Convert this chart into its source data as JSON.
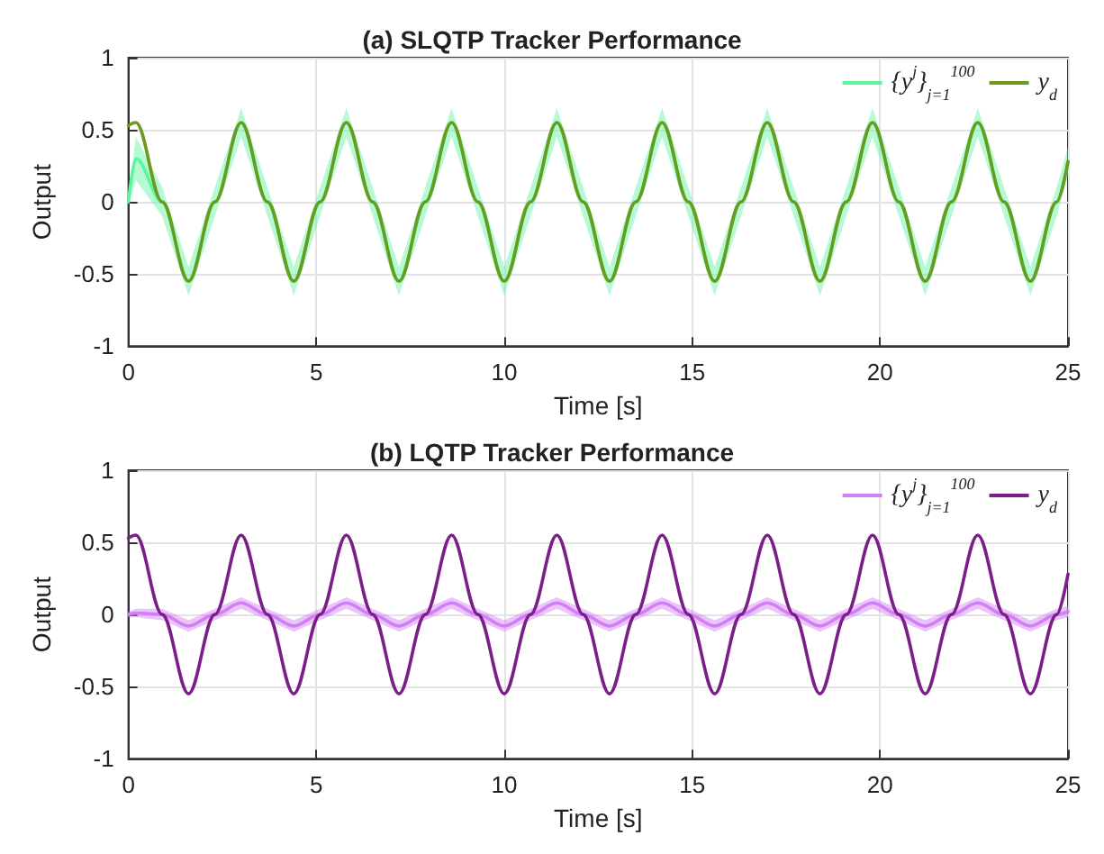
{
  "chart_data": [
    {
      "type": "line",
      "title": "(a) SLQTP Tracker Performance",
      "xlabel": "Time [s]",
      "ylabel": "Output",
      "xlim": [
        0,
        25
      ],
      "xticks": [
        0,
        5,
        10,
        15,
        20,
        25
      ],
      "ylim": [
        -1,
        1
      ],
      "yticks": [
        -1,
        -0.5,
        0,
        0.5,
        1
      ],
      "grid": true,
      "legend": "top right",
      "line_style": "solid",
      "marker": "none",
      "x": [
        0,
        0.2,
        0.9,
        1.6,
        2.3,
        3.0,
        3.7,
        4.4,
        5.1,
        5.8,
        6.5,
        7.2,
        7.9,
        8.6,
        9.3,
        10.0,
        10.7,
        11.4,
        12.1,
        12.8,
        13.5,
        14.2,
        14.9,
        15.6,
        16.3,
        17.0,
        17.7,
        18.4,
        19.1,
        19.8,
        20.5,
        21.2,
        21.9,
        22.6,
        23.3,
        24.0,
        24.7,
        25
      ],
      "series": [
        {
          "name": "{y$^{j}$}$_{j=1}$$^{100}$",
          "color": "#5ef59e",
          "values": [
            0,
            0.3,
            0,
            -0.55,
            0,
            0.55,
            0,
            -0.55,
            0,
            0.55,
            0,
            -0.55,
            0,
            0.55,
            0,
            -0.55,
            0,
            0.55,
            0,
            -0.55,
            0,
            0.55,
            0,
            -0.55,
            0,
            0.55,
            0,
            -0.55,
            0,
            0.55,
            0,
            -0.55,
            0,
            0.55,
            0,
            -0.55,
            0,
            0.28
          ],
          "lower": [
            -0.02,
            0.15,
            -0.1,
            -0.65,
            -0.1,
            0.45,
            -0.1,
            -0.65,
            -0.1,
            0.45,
            -0.1,
            -0.65,
            -0.1,
            0.45,
            -0.1,
            -0.65,
            -0.1,
            0.45,
            -0.1,
            -0.65,
            -0.1,
            0.45,
            -0.1,
            -0.65,
            -0.1,
            0.45,
            -0.1,
            -0.65,
            -0.1,
            0.45,
            -0.1,
            -0.65,
            -0.1,
            0.45,
            -0.1,
            -0.65,
            -0.1,
            0.18
          ],
          "upper": [
            0.05,
            0.45,
            0.1,
            -0.45,
            0.1,
            0.65,
            0.1,
            -0.45,
            0.1,
            0.65,
            0.1,
            -0.45,
            0.1,
            0.65,
            0.1,
            -0.45,
            0.1,
            0.65,
            0.1,
            -0.45,
            0.1,
            0.65,
            0.1,
            -0.45,
            0.1,
            0.65,
            0.1,
            -0.45,
            0.1,
            0.65,
            0.1,
            -0.45,
            0.1,
            0.65,
            0.1,
            -0.45,
            0.1,
            0.38
          ]
        },
        {
          "name": "y$_{d}$",
          "color": "#6a9a1f",
          "values": [
            0.53,
            0.55,
            0,
            -0.55,
            0,
            0.55,
            0,
            -0.55,
            0,
            0.55,
            0,
            -0.55,
            0,
            0.55,
            0,
            -0.55,
            0,
            0.55,
            0,
            -0.55,
            0,
            0.55,
            0,
            -0.55,
            0,
            0.55,
            0,
            -0.55,
            0,
            0.55,
            0,
            -0.55,
            0,
            0.55,
            0,
            -0.55,
            0,
            0.28
          ]
        }
      ]
    },
    {
      "type": "line",
      "title": "(b) LQTP Tracker Performance",
      "xlabel": "Time [s]",
      "ylabel": "Output",
      "xlim": [
        0,
        25
      ],
      "xticks": [
        0,
        5,
        10,
        15,
        20,
        25
      ],
      "ylim": [
        -1,
        1
      ],
      "yticks": [
        -1,
        -0.5,
        0,
        0.5,
        1
      ],
      "grid": true,
      "legend": "top right",
      "line_style": "solid",
      "marker": "none",
      "x": [
        0,
        0.2,
        0.9,
        1.6,
        2.3,
        3.0,
        3.7,
        4.4,
        5.1,
        5.8,
        6.5,
        7.2,
        7.9,
        8.6,
        9.3,
        10.0,
        10.7,
        11.4,
        12.1,
        12.8,
        13.5,
        14.2,
        14.9,
        15.6,
        16.3,
        17.0,
        17.7,
        18.4,
        19.1,
        19.8,
        20.5,
        21.2,
        21.9,
        22.6,
        23.3,
        24.0,
        24.7,
        25
      ],
      "series": [
        {
          "name": "{y$^{j}$}$_{j=1}$$^{100}$",
          "color": "#d27ef5",
          "values": [
            0,
            0.01,
            0,
            -0.08,
            0,
            0.08,
            0,
            -0.08,
            0,
            0.08,
            0,
            -0.08,
            0,
            0.08,
            0,
            -0.08,
            0,
            0.08,
            0,
            -0.08,
            0,
            0.08,
            0,
            -0.08,
            0,
            0.08,
            0,
            -0.08,
            0,
            0.08,
            0,
            -0.08,
            0,
            0.08,
            0,
            -0.08,
            0,
            0.02
          ],
          "lower": [
            -0.02,
            -0.02,
            -0.04,
            -0.12,
            -0.04,
            0.04,
            -0.04,
            -0.12,
            -0.04,
            0.04,
            -0.04,
            -0.12,
            -0.04,
            0.04,
            -0.04,
            -0.12,
            -0.04,
            0.04,
            -0.04,
            -0.12,
            -0.04,
            0.04,
            -0.04,
            -0.12,
            -0.04,
            0.04,
            -0.04,
            -0.12,
            -0.04,
            0.04,
            -0.04,
            -0.12,
            -0.04,
            0.04,
            -0.04,
            -0.12,
            -0.04,
            -0.02
          ],
          "upper": [
            0.02,
            0.04,
            0.04,
            -0.04,
            0.04,
            0.12,
            0.04,
            -0.04,
            0.04,
            0.12,
            0.04,
            -0.04,
            0.04,
            0.12,
            0.04,
            -0.04,
            0.04,
            0.12,
            0.04,
            -0.04,
            0.04,
            0.12,
            0.04,
            -0.04,
            0.04,
            0.12,
            0.04,
            -0.04,
            0.04,
            0.12,
            0.04,
            -0.04,
            0.04,
            0.12,
            0.04,
            -0.04,
            0.04,
            0.06
          ]
        },
        {
          "name": "y$_{d}$",
          "color": "#7a1f87",
          "values": [
            0.53,
            0.55,
            0,
            -0.55,
            0,
            0.55,
            0,
            -0.55,
            0,
            0.55,
            0,
            -0.55,
            0,
            0.55,
            0,
            -0.55,
            0,
            0.55,
            0,
            -0.55,
            0,
            0.55,
            0,
            -0.55,
            0,
            0.55,
            0,
            -0.55,
            0,
            0.55,
            0,
            -0.55,
            0,
            0.55,
            0,
            -0.55,
            0,
            0.28
          ]
        }
      ]
    }
  ]
}
